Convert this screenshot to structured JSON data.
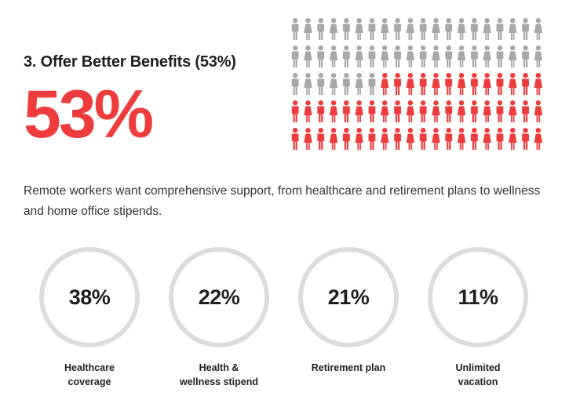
{
  "section": {
    "heading": "3. Offer Better Benefits (53%)",
    "big_percentage": "53%",
    "description": "Remote workers want comprehensive support, from healthcare and retirement plans to wellness and home office stipends."
  },
  "pictograph": {
    "total_icons": 100,
    "highlighted_icons": 53,
    "highlight_color": "#ee3c3c",
    "base_color": "#a8a8a8"
  },
  "stats": [
    {
      "value": "38%",
      "label": "Healthcare coverage"
    },
    {
      "value": "22%",
      "label": "Health & wellness stipend"
    },
    {
      "value": "21%",
      "label": "Retirement plan"
    },
    {
      "value": "11%",
      "label": "Unlimited vacation"
    }
  ],
  "colors": {
    "accent": "#ee3c3c",
    "ring": "#dcdcdc",
    "text": "#1f1f1f"
  }
}
